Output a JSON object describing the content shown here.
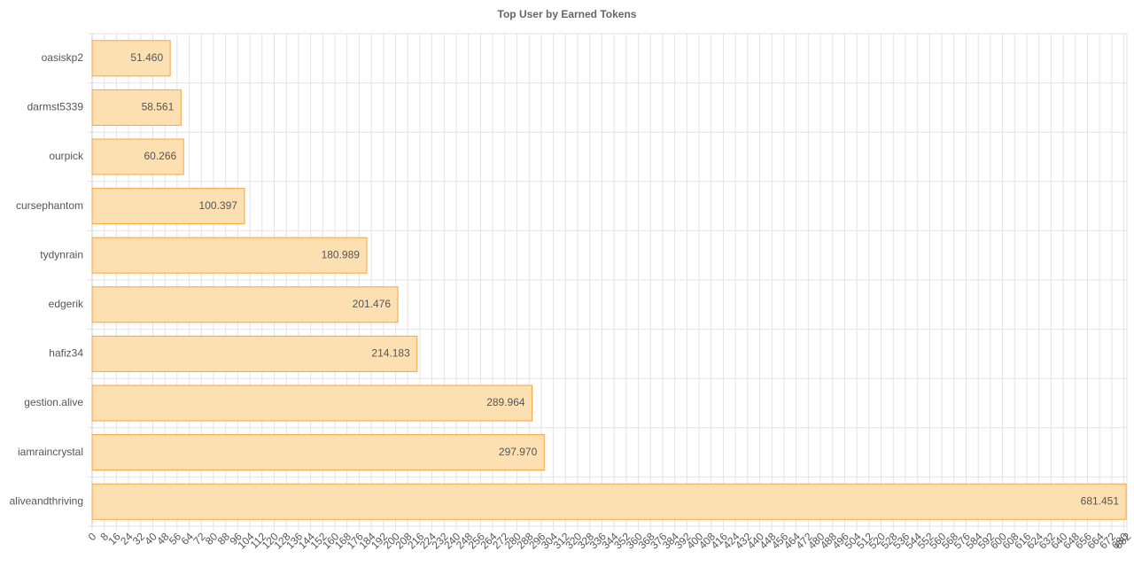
{
  "chart_data": {
    "type": "hbar",
    "title": "Top User by Earned Tokens",
    "categories": [
      "oasiskp2",
      "darmst5339",
      "ourpick",
      "cursephantom",
      "tydynrain",
      "edgerik",
      "hafiz34",
      "gestion.alive",
      "iamraincrystal",
      "aliveandthriving"
    ],
    "values": [
      51.46,
      58.561,
      60.266,
      100.397,
      180.989,
      201.476,
      214.183,
      289.964,
      297.97,
      681.451
    ],
    "value_labels": [
      "51.460",
      "58.561",
      "60.266",
      "100.397",
      "180.989",
      "201.476",
      "214.183",
      "289.964",
      "297.970",
      "681.451"
    ],
    "color": "#fde0b2",
    "border_color": "#f7a440",
    "xlim": [
      0,
      682
    ],
    "xticks": [
      0,
      8,
      16,
      24,
      32,
      40,
      48,
      56,
      64,
      72,
      80,
      88,
      96,
      104,
      112,
      120,
      128,
      136,
      144,
      152,
      160,
      168,
      176,
      184,
      192,
      200,
      208,
      216,
      224,
      232,
      240,
      248,
      256,
      264,
      272,
      280,
      288,
      296,
      304,
      312,
      320,
      328,
      336,
      344,
      352,
      360,
      368,
      376,
      384,
      392,
      400,
      408,
      416,
      424,
      432,
      440,
      448,
      456,
      464,
      472,
      480,
      488,
      496,
      504,
      512,
      520,
      528,
      536,
      544,
      552,
      560,
      568,
      576,
      584,
      592,
      600,
      608,
      616,
      624,
      632,
      640,
      648,
      656,
      664,
      672,
      680,
      682
    ],
    "grid": true
  }
}
